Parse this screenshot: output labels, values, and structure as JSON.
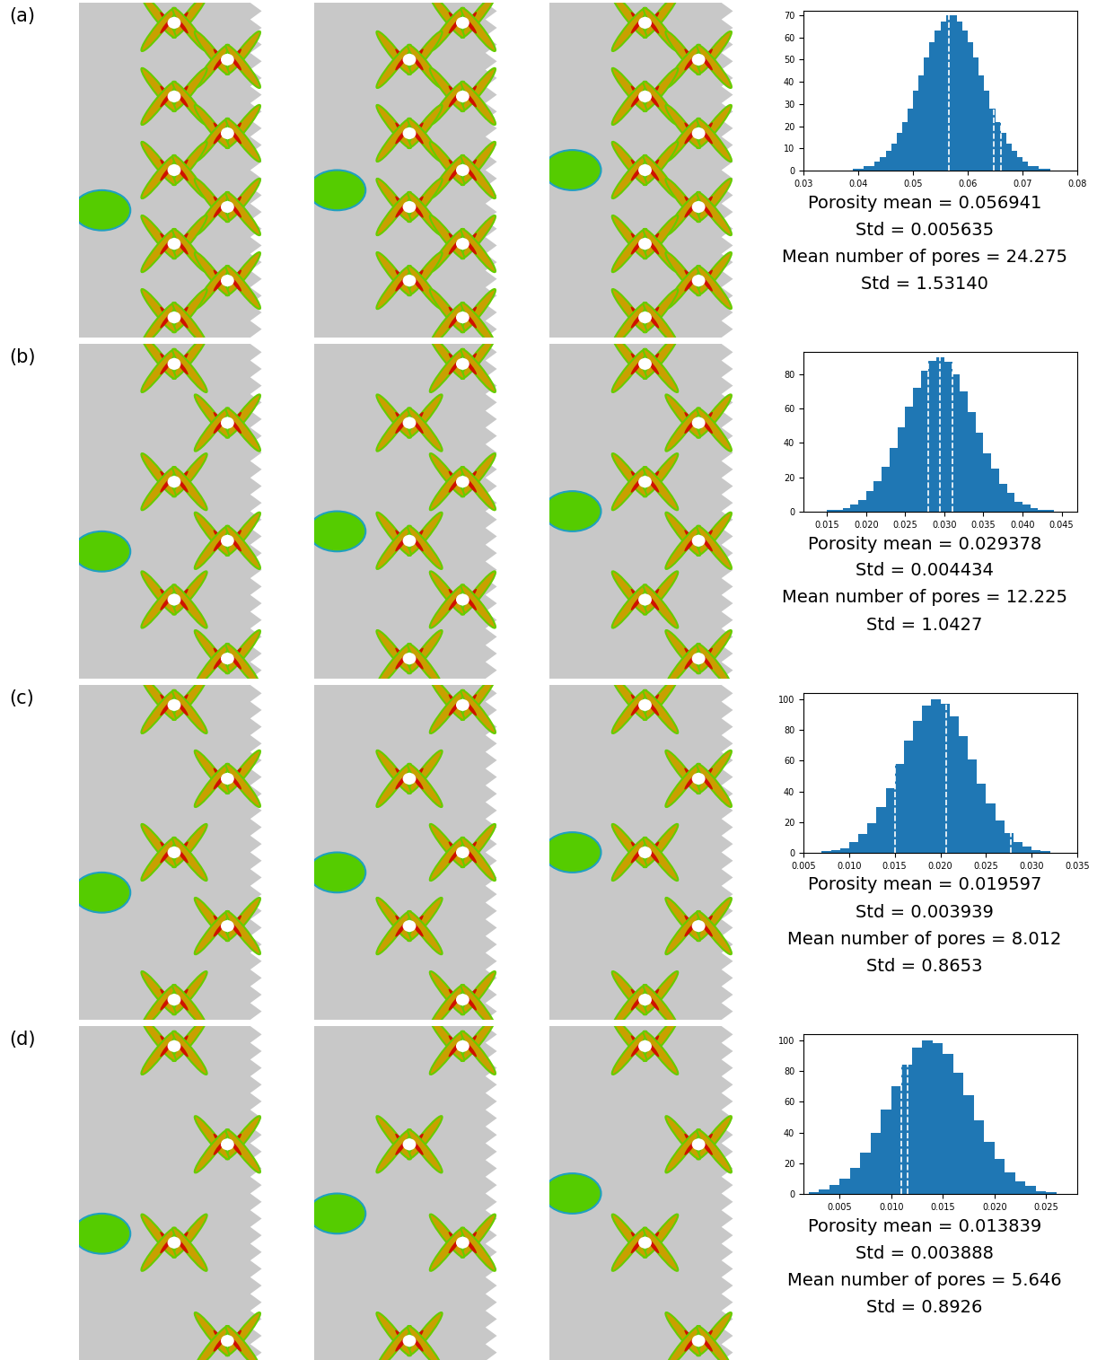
{
  "chart_data": [
    {
      "type": "histogram",
      "label": "(a)",
      "bins": [
        0.035,
        0.036,
        0.037,
        0.038,
        0.039,
        0.04,
        0.041,
        0.042,
        0.043,
        0.044,
        0.045,
        0.046,
        0.047,
        0.048,
        0.049,
        0.05,
        0.051,
        0.052,
        0.053,
        0.054,
        0.055,
        0.056,
        0.057,
        0.058,
        0.059,
        0.06,
        0.061,
        0.062,
        0.063,
        0.064,
        0.065,
        0.066,
        0.067,
        0.068,
        0.069,
        0.07,
        0.071,
        0.072,
        0.073,
        0.074,
        0.075,
        0.076,
        0.077,
        0.078,
        0.079
      ],
      "counts": [
        0,
        0,
        0,
        0,
        1,
        1,
        2,
        2,
        4,
        6,
        9,
        12,
        17,
        22,
        28,
        36,
        43,
        51,
        58,
        63,
        67,
        70,
        70,
        67,
        63,
        58,
        51,
        43,
        36,
        28,
        22,
        17,
        12,
        9,
        6,
        4,
        2,
        2,
        1,
        1,
        0,
        0,
        0,
        0
      ],
      "color": "#1f77b4",
      "xlim": [
        0.03,
        0.08
      ],
      "ylim": [
        0,
        72
      ],
      "xticks": [
        0.03,
        0.04,
        0.05,
        0.06,
        0.07,
        0.08
      ],
      "yticks": [
        0,
        10,
        20,
        30,
        40,
        50,
        60,
        70
      ],
      "vlines": [
        0.0565,
        0.0648,
        0.066
      ],
      "annotations": [
        "Porosity mean = 0.056941",
        "Std = 0.005635",
        "Mean number of pores = 24.275",
        "Std = 1.53140"
      ]
    },
    {
      "type": "histogram",
      "label": "(b)",
      "bins": [
        0.013,
        0.014,
        0.015,
        0.016,
        0.017,
        0.018,
        0.019,
        0.02,
        0.021,
        0.022,
        0.023,
        0.024,
        0.025,
        0.026,
        0.027,
        0.028,
        0.029,
        0.03,
        0.031,
        0.032,
        0.033,
        0.034,
        0.035,
        0.036,
        0.037,
        0.038,
        0.039,
        0.04,
        0.041,
        0.042,
        0.043,
        0.044,
        0.045,
        0.046
      ],
      "counts": [
        0,
        0,
        1,
        1,
        2,
        4,
        7,
        12,
        18,
        26,
        37,
        49,
        61,
        72,
        82,
        88,
        90,
        87,
        80,
        70,
        58,
        46,
        34,
        25,
        16,
        11,
        6,
        4,
        2,
        1,
        1,
        0,
        0
      ],
      "color": "#1f77b4",
      "xlim": [
        0.012,
        0.047
      ],
      "ylim": [
        0,
        93
      ],
      "xticks": [
        0.015,
        {
          "value": 0.02,
          "label": "0.020"
        },
        0.025,
        {
          "value": 0.03,
          "label": "0.030"
        },
        0.035,
        {
          "value": 0.04,
          "label": "0.040"
        },
        0.045
      ],
      "yticks": [
        0,
        20,
        40,
        60,
        80
      ],
      "vlines": [
        0.028,
        0.0294,
        0.031
      ],
      "annotations": [
        "Porosity mean = 0.029378",
        "Std = 0.004434",
        "Mean number of pores = 12.225",
        "Std = 1.0427"
      ]
    },
    {
      "type": "histogram",
      "label": "(c)",
      "bins": [
        0.006,
        0.007,
        0.008,
        0.009,
        0.01,
        0.011,
        0.012,
        0.013,
        0.014,
        0.015,
        0.016,
        0.017,
        0.018,
        0.019,
        0.02,
        0.021,
        0.022,
        0.023,
        0.024,
        0.025,
        0.026,
        0.027,
        0.028,
        0.029,
        0.03,
        0.031,
        0.032,
        0.033,
        0.034
      ],
      "counts": [
        0,
        1,
        2,
        3,
        7,
        12,
        19,
        30,
        42,
        58,
        73,
        86,
        96,
        100,
        97,
        89,
        76,
        61,
        45,
        32,
        21,
        13,
        7,
        4,
        2,
        1,
        0,
        0
      ],
      "color": "#1f77b4",
      "xlim": [
        0.005,
        0.035
      ],
      "ylim": [
        0,
        104
      ],
      "xticks": [
        0.005,
        {
          "value": 0.01,
          "label": "0.010"
        },
        0.015,
        {
          "value": 0.02,
          "label": "0.020"
        },
        0.025,
        {
          "value": 0.03,
          "label": "0.030"
        },
        0.035
      ],
      "yticks": [
        0,
        20,
        40,
        60,
        80,
        100
      ],
      "vlines": [
        0.015,
        0.0206,
        0.0277
      ],
      "annotations": [
        "Porosity mean = 0.019597",
        "Std = 0.003939",
        "Mean number of pores = 8.012",
        "Std = 0.8653"
      ]
    },
    {
      "type": "histogram",
      "label": "(d)",
      "bins": [
        0.002,
        0.003,
        0.004,
        0.005,
        0.006,
        0.007,
        0.008,
        0.009,
        0.01,
        0.011,
        0.012,
        0.013,
        0.014,
        0.015,
        0.016,
        0.017,
        0.018,
        0.019,
        0.02,
        0.021,
        0.022,
        0.023,
        0.024,
        0.025,
        0.026,
        0.027
      ],
      "counts": [
        1,
        3,
        6,
        10,
        17,
        27,
        40,
        55,
        70,
        84,
        95,
        100,
        98,
        91,
        79,
        64,
        48,
        34,
        23,
        14,
        8,
        5,
        2,
        1,
        0
      ],
      "color": "#1f77b4",
      "xlim": [
        0.0015,
        0.028
      ],
      "ylim": [
        0,
        104
      ],
      "xticks": [
        0.005,
        {
          "value": 0.01,
          "label": "0.010"
        },
        0.015,
        {
          "value": 0.02,
          "label": "0.020"
        },
        0.025
      ],
      "yticks": [
        0,
        20,
        40,
        60,
        80,
        100
      ],
      "vlines": [
        0.011,
        0.0116
      ],
      "annotations": [
        "Porosity mean = 0.013839",
        "Std = 0.003888",
        "Mean number of pores = 5.646",
        "Std = 0.8926"
      ]
    }
  ]
}
